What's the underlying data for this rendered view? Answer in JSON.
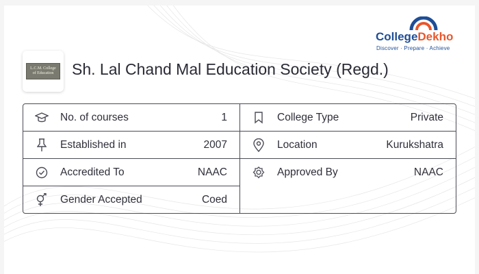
{
  "brand": {
    "name_main": "College",
    "name_accent": "Dekho",
    "tagline": "Discover · Prepare · Achieve"
  },
  "college": {
    "title": "Sh. Lal Chand Mal Education Society (Regd.)",
    "logo_text_line1": "L.C.M. College",
    "logo_text_line2": "of Education"
  },
  "details": {
    "left": [
      {
        "label": "No. of courses",
        "value": "1",
        "icon": "graduation-cap-icon"
      },
      {
        "label": "Established in",
        "value": "2007",
        "icon": "pin-icon"
      },
      {
        "label": "Accredited To",
        "value": "NAAC",
        "icon": "check-circle-icon"
      },
      {
        "label": "Gender Accepted",
        "value": "Coed",
        "icon": "gender-icon"
      }
    ],
    "right": [
      {
        "label": "College Type",
        "value": "Private",
        "icon": "bookmark-icon"
      },
      {
        "label": "Location",
        "value": "Kurukshatra",
        "icon": "location-icon"
      },
      {
        "label": "Approved By",
        "value": "NAAC",
        "icon": "badge-icon"
      }
    ]
  },
  "colors": {
    "brand_blue": "#1f4e96",
    "brand_orange": "#e8572b",
    "border": "#4a4a55",
    "text": "#2f2f3a"
  }
}
